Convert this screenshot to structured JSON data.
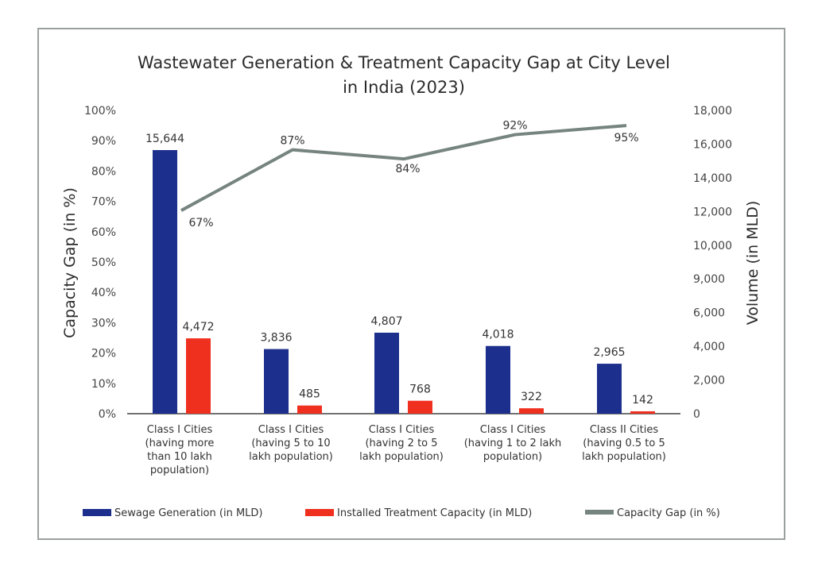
{
  "chart_data": {
    "type": "bar",
    "title_lines": [
      "Wastewater Generation & Treatment Capacity Gap at City Level",
      "in India (2023)"
    ],
    "categories": [
      [
        "Class I Cities",
        "(having more",
        "than 10 lakh",
        "population)"
      ],
      [
        "Class I Cities",
        "(having 5 to 10",
        "lakh population)"
      ],
      [
        "Class I Cities",
        "(having 2 to 5",
        "lakh population)"
      ],
      [
        "Class I Cities",
        "(having 1 to 2 lakh",
        "population)"
      ],
      [
        "Class II Cities",
        "(having 0.5 to 5",
        "lakh population)"
      ]
    ],
    "series": [
      {
        "name": "Sewage Generation (in MLD)",
        "type": "bar",
        "axis": "right",
        "color": "#1c2f8c",
        "values": [
          15644,
          3836,
          4807,
          4018,
          2965
        ],
        "labels": [
          "15,644",
          "3,836",
          "4,807",
          "4,018",
          "2,965"
        ]
      },
      {
        "name": "Installed Treatment Capacity (in MLD)",
        "type": "bar",
        "axis": "right",
        "color": "#f0301e",
        "values": [
          4472,
          485,
          768,
          322,
          142
        ],
        "labels": [
          "4,472",
          "485",
          "768",
          "322",
          "142"
        ]
      },
      {
        "name": "Capacity Gap (in %)",
        "type": "line",
        "axis": "left",
        "color": "#76847f",
        "values": [
          67,
          87,
          84,
          92,
          95
        ],
        "labels": [
          "67%",
          "87%",
          "84%",
          "92%",
          "95%"
        ]
      }
    ],
    "y_left": {
      "label": "Capacity Gap (in %)",
      "range": [
        0,
        100
      ],
      "ticks": [
        "0%",
        "10%",
        "20%",
        "30%",
        "40%",
        "50%",
        "60%",
        "70%",
        "80%",
        "90%",
        "100%"
      ]
    },
    "y_right": {
      "label": "Volume (in MLD)",
      "range": [
        0,
        18000
      ],
      "ticks": [
        "0",
        "2,000",
        "4,000",
        "6,000",
        "9,000",
        "10,000",
        "12,000",
        "14,000",
        "16,000",
        "18,000"
      ]
    },
    "grid": false,
    "legend_position": "bottom"
  }
}
